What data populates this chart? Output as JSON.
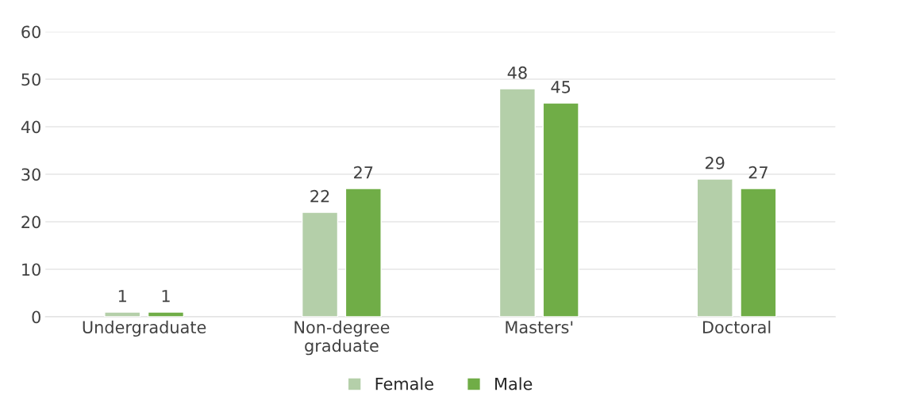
{
  "chart_data": {
    "type": "bar",
    "categories": [
      "Undergraduate",
      "Non-degree\ngraduate",
      "Masters'",
      "Doctoral"
    ],
    "series": [
      {
        "name": "Female",
        "color": "#b4cfa9",
        "values": [
          1,
          22,
          48,
          29
        ]
      },
      {
        "name": "Male",
        "color": "#70ad47",
        "values": [
          1,
          27,
          45,
          27
        ]
      }
    ],
    "ylim": [
      0,
      60
    ],
    "yticks": [
      0,
      10,
      20,
      30,
      40,
      50,
      60
    ],
    "grid": "y",
    "legend": "bottom",
    "data_labels": true
  }
}
